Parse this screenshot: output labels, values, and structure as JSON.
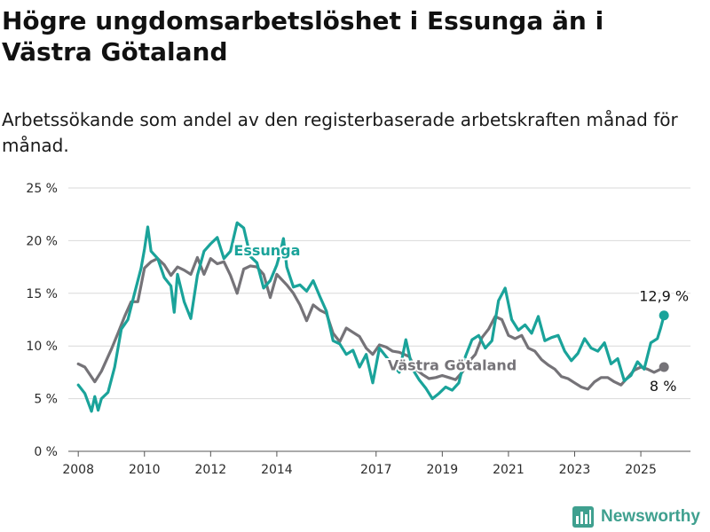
{
  "title": "Högre ungdomsarbetslöshet i Essunga än i Västra Götaland",
  "subtitle": "Arbetssökande som andel av den registerbaserade arbetskraften månad för månad.",
  "brand": "Newsworthy",
  "colors": {
    "essunga": "#1aa39a",
    "vastra": "#757378",
    "grid": "#d9d9d9",
    "brand": "#3fa08f"
  },
  "chart_data": {
    "type": "line",
    "ylim": [
      0,
      25
    ],
    "xlim": [
      2007.7,
      2026.5
    ],
    "y_ticks": [
      {
        "value": 0,
        "label": "0 %"
      },
      {
        "value": 5,
        "label": "5 %"
      },
      {
        "value": 10,
        "label": "10 %"
      },
      {
        "value": 15,
        "label": "15 %"
      },
      {
        "value": 20,
        "label": "20 %"
      },
      {
        "value": 25,
        "label": "25 %"
      }
    ],
    "x_ticks": [
      {
        "value": 2008,
        "label": "2008"
      },
      {
        "value": 2010,
        "label": "2010"
      },
      {
        "value": 2012,
        "label": "2012"
      },
      {
        "value": 2014,
        "label": "2014"
      },
      {
        "value": 2017,
        "label": "2017"
      },
      {
        "value": 2019,
        "label": "2019"
      },
      {
        "value": 2021,
        "label": "2021"
      },
      {
        "value": 2023,
        "label": "2023"
      },
      {
        "value": 2025,
        "label": "2025"
      }
    ],
    "series": [
      {
        "name": "Västra Götaland",
        "end_label": "8 %",
        "points": [
          [
            2008.0,
            8.3
          ],
          [
            2008.2,
            8.0
          ],
          [
            2008.5,
            6.6
          ],
          [
            2008.7,
            7.6
          ],
          [
            2009.0,
            9.7
          ],
          [
            2009.2,
            11.2
          ],
          [
            2009.4,
            12.8
          ],
          [
            2009.6,
            14.2
          ],
          [
            2009.8,
            14.2
          ],
          [
            2010.0,
            17.4
          ],
          [
            2010.2,
            18.0
          ],
          [
            2010.4,
            18.3
          ],
          [
            2010.6,
            17.7
          ],
          [
            2010.8,
            16.7
          ],
          [
            2011.0,
            17.5
          ],
          [
            2011.2,
            17.2
          ],
          [
            2011.4,
            16.8
          ],
          [
            2011.6,
            18.4
          ],
          [
            2011.8,
            16.8
          ],
          [
            2012.0,
            18.3
          ],
          [
            2012.2,
            17.8
          ],
          [
            2012.4,
            18.0
          ],
          [
            2012.6,
            16.7
          ],
          [
            2012.8,
            15.0
          ],
          [
            2013.0,
            17.3
          ],
          [
            2013.2,
            17.6
          ],
          [
            2013.4,
            17.5
          ],
          [
            2013.6,
            16.8
          ],
          [
            2013.8,
            14.6
          ],
          [
            2014.0,
            16.8
          ],
          [
            2014.3,
            15.8
          ],
          [
            2014.5,
            15.0
          ],
          [
            2014.7,
            13.9
          ],
          [
            2014.9,
            12.4
          ],
          [
            2015.1,
            13.9
          ],
          [
            2015.3,
            13.4
          ],
          [
            2015.5,
            13.1
          ],
          [
            2015.7,
            11.2
          ],
          [
            2015.9,
            10.4
          ],
          [
            2016.1,
            11.7
          ],
          [
            2016.3,
            11.3
          ],
          [
            2016.5,
            10.9
          ],
          [
            2016.7,
            9.8
          ],
          [
            2016.9,
            9.2
          ],
          [
            2017.1,
            10.1
          ],
          [
            2017.3,
            9.9
          ],
          [
            2017.5,
            9.5
          ],
          [
            2017.7,
            9.4
          ],
          [
            2018.0,
            9.0
          ],
          [
            2018.2,
            7.8
          ],
          [
            2018.4,
            7.3
          ],
          [
            2018.6,
            6.9
          ],
          [
            2018.8,
            7.0
          ],
          [
            2019.0,
            7.2
          ],
          [
            2019.2,
            7.0
          ],
          [
            2019.4,
            6.8
          ],
          [
            2019.6,
            7.5
          ],
          [
            2019.8,
            8.5
          ],
          [
            2020.0,
            9.2
          ],
          [
            2020.2,
            10.8
          ],
          [
            2020.4,
            11.6
          ],
          [
            2020.6,
            12.8
          ],
          [
            2020.8,
            12.5
          ],
          [
            2021.0,
            11.0
          ],
          [
            2021.2,
            10.7
          ],
          [
            2021.4,
            11.0
          ],
          [
            2021.6,
            9.8
          ],
          [
            2021.8,
            9.5
          ],
          [
            2022.0,
            8.7
          ],
          [
            2022.2,
            8.2
          ],
          [
            2022.4,
            7.8
          ],
          [
            2022.6,
            7.1
          ],
          [
            2022.8,
            6.9
          ],
          [
            2023.0,
            6.5
          ],
          [
            2023.2,
            6.1
          ],
          [
            2023.4,
            5.9
          ],
          [
            2023.6,
            6.6
          ],
          [
            2023.8,
            7.0
          ],
          [
            2024.0,
            7.0
          ],
          [
            2024.2,
            6.6
          ],
          [
            2024.4,
            6.3
          ],
          [
            2024.6,
            7.0
          ],
          [
            2024.8,
            7.7
          ],
          [
            2025.0,
            8.0
          ],
          [
            2025.2,
            7.8
          ],
          [
            2025.4,
            7.5
          ],
          [
            2025.6,
            7.8
          ],
          [
            2025.7,
            8.0
          ]
        ]
      },
      {
        "name": "Essunga",
        "end_label": "12,9 %",
        "points": [
          [
            2008.0,
            6.3
          ],
          [
            2008.2,
            5.5
          ],
          [
            2008.4,
            3.8
          ],
          [
            2008.5,
            5.2
          ],
          [
            2008.6,
            3.9
          ],
          [
            2008.7,
            5.0
          ],
          [
            2008.9,
            5.6
          ],
          [
            2009.1,
            8.0
          ],
          [
            2009.3,
            11.6
          ],
          [
            2009.5,
            12.5
          ],
          [
            2009.7,
            15.0
          ],
          [
            2009.9,
            17.4
          ],
          [
            2010.0,
            19.2
          ],
          [
            2010.1,
            21.3
          ],
          [
            2010.2,
            19.0
          ],
          [
            2010.4,
            18.3
          ],
          [
            2010.6,
            16.5
          ],
          [
            2010.8,
            15.7
          ],
          [
            2010.9,
            13.2
          ],
          [
            2011.0,
            16.8
          ],
          [
            2011.2,
            14.2
          ],
          [
            2011.4,
            12.6
          ],
          [
            2011.6,
            16.7
          ],
          [
            2011.8,
            19.0
          ],
          [
            2012.0,
            19.7
          ],
          [
            2012.2,
            20.3
          ],
          [
            2012.4,
            18.3
          ],
          [
            2012.6,
            19.0
          ],
          [
            2012.8,
            21.7
          ],
          [
            2013.0,
            21.2
          ],
          [
            2013.2,
            18.5
          ],
          [
            2013.4,
            17.9
          ],
          [
            2013.6,
            15.5
          ],
          [
            2013.8,
            16.2
          ],
          [
            2014.0,
            17.7
          ],
          [
            2014.1,
            18.8
          ],
          [
            2014.2,
            20.2
          ],
          [
            2014.3,
            17.5
          ],
          [
            2014.5,
            15.6
          ],
          [
            2014.7,
            15.8
          ],
          [
            2014.9,
            15.2
          ],
          [
            2015.1,
            16.2
          ],
          [
            2015.3,
            14.7
          ],
          [
            2015.5,
            13.3
          ],
          [
            2015.7,
            10.5
          ],
          [
            2015.9,
            10.2
          ],
          [
            2016.1,
            9.2
          ],
          [
            2016.3,
            9.6
          ],
          [
            2016.5,
            8.0
          ],
          [
            2016.7,
            9.2
          ],
          [
            2016.9,
            6.5
          ],
          [
            2017.1,
            9.8
          ],
          [
            2017.3,
            9.0
          ],
          [
            2017.5,
            8.2
          ],
          [
            2017.7,
            7.5
          ],
          [
            2017.9,
            10.6
          ],
          [
            2018.1,
            7.8
          ],
          [
            2018.3,
            6.8
          ],
          [
            2018.5,
            6.0
          ],
          [
            2018.7,
            5.0
          ],
          [
            2018.9,
            5.5
          ],
          [
            2019.1,
            6.1
          ],
          [
            2019.3,
            5.8
          ],
          [
            2019.5,
            6.5
          ],
          [
            2019.7,
            9.0
          ],
          [
            2019.9,
            10.6
          ],
          [
            2020.1,
            11.0
          ],
          [
            2020.3,
            9.8
          ],
          [
            2020.5,
            10.5
          ],
          [
            2020.7,
            14.3
          ],
          [
            2020.9,
            15.5
          ],
          [
            2021.1,
            12.5
          ],
          [
            2021.3,
            11.5
          ],
          [
            2021.5,
            12.0
          ],
          [
            2021.7,
            11.2
          ],
          [
            2021.9,
            12.8
          ],
          [
            2022.1,
            10.5
          ],
          [
            2022.3,
            10.8
          ],
          [
            2022.5,
            11.0
          ],
          [
            2022.7,
            9.5
          ],
          [
            2022.9,
            8.6
          ],
          [
            2023.1,
            9.3
          ],
          [
            2023.3,
            10.7
          ],
          [
            2023.5,
            9.8
          ],
          [
            2023.7,
            9.5
          ],
          [
            2023.9,
            10.3
          ],
          [
            2024.1,
            8.3
          ],
          [
            2024.3,
            8.8
          ],
          [
            2024.5,
            6.7
          ],
          [
            2024.7,
            7.2
          ],
          [
            2024.9,
            8.5
          ],
          [
            2025.1,
            7.8
          ],
          [
            2025.3,
            10.3
          ],
          [
            2025.5,
            10.7
          ],
          [
            2025.6,
            11.7
          ],
          [
            2025.7,
            12.9
          ]
        ]
      }
    ]
  }
}
